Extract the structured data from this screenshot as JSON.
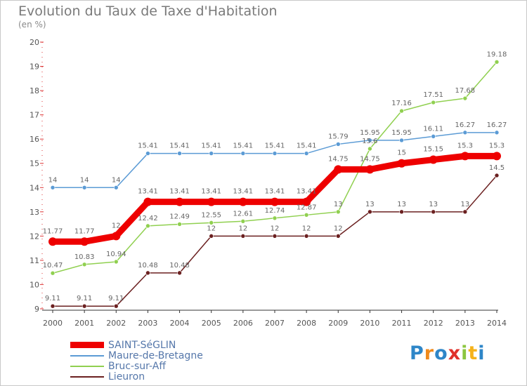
{
  "title": "Evolution du Taux de Taxe d'Habitation",
  "unit": "(en %)",
  "logo": "Proxiti",
  "chart_data": {
    "type": "line",
    "title": "Evolution du Taux de Taxe d'Habitation",
    "ylabel": "(en %)",
    "xlabel": "",
    "x": [
      2000,
      2001,
      2002,
      2003,
      2004,
      2005,
      2006,
      2007,
      2008,
      2009,
      2010,
      2011,
      2012,
      2013,
      2014
    ],
    "ylim": [
      9,
      20
    ],
    "yticks": [
      9,
      10,
      11,
      12,
      13,
      14,
      15,
      16,
      17,
      18,
      19,
      20
    ],
    "grid": false,
    "legend": "bottom-left",
    "series": [
      {
        "name": "SAINT-SéGLIN",
        "color": "#ee0000",
        "values": [
          11.77,
          11.77,
          12,
          13.41,
          13.41,
          13.41,
          13.41,
          13.41,
          13.41,
          14.75,
          14.75,
          15,
          15.15,
          15.3,
          15.3
        ]
      },
      {
        "name": "Maure-de-Bretagne",
        "color": "#5b9bd5",
        "values": [
          14,
          14,
          14,
          15.41,
          15.41,
          15.41,
          15.41,
          15.41,
          15.41,
          15.79,
          15.95,
          15.95,
          16.11,
          16.27,
          16.27
        ]
      },
      {
        "name": "Bruc-sur-Aff",
        "color": "#90d050",
        "values": [
          10.47,
          10.83,
          10.94,
          12.42,
          12.49,
          12.55,
          12.61,
          12.74,
          12.87,
          13,
          15.6,
          17.16,
          17.51,
          17.68,
          19.18
        ]
      },
      {
        "name": "Lieuron",
        "color": "#6b2020",
        "values": [
          9.11,
          9.11,
          9.11,
          10.48,
          10.48,
          12,
          12,
          12,
          12,
          12,
          13,
          13,
          13,
          13,
          14.5
        ]
      }
    ]
  }
}
